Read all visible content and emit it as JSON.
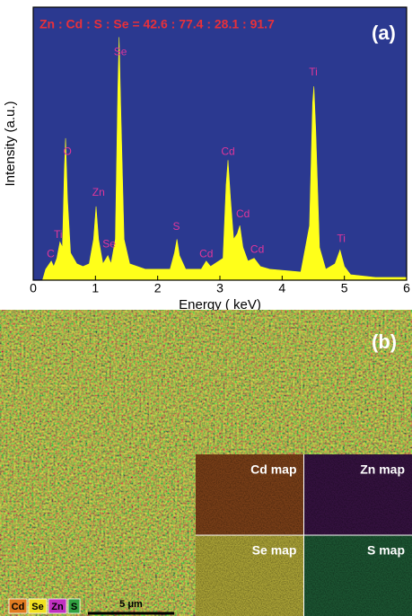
{
  "chart_data": {
    "type": "area",
    "title": "Zn : Cd : S : Se = 42.6 : 77.4 : 28.1 : 91.7",
    "panel_label": "(a)",
    "x_label": "Energy ( keV)",
    "y_label": "Intensity (a.u.)",
    "x": [
      0.15,
      0.2,
      0.26,
      0.29,
      0.33,
      0.38,
      0.43,
      0.47,
      0.5,
      0.52,
      0.55,
      0.6,
      0.7,
      0.8,
      0.9,
      0.97,
      1.01,
      1.05,
      1.12,
      1.2,
      1.25,
      1.32,
      1.36,
      1.38,
      1.41,
      1.46,
      1.55,
      1.8,
      2.2,
      2.27,
      2.31,
      2.35,
      2.45,
      2.7,
      2.78,
      2.85,
      3.05,
      3.1,
      3.13,
      3.17,
      3.22,
      3.28,
      3.32,
      3.37,
      3.45,
      3.55,
      3.65,
      3.8,
      4.3,
      4.44,
      4.49,
      4.51,
      4.54,
      4.6,
      4.7,
      4.85,
      4.93,
      5.0,
      5.1,
      5.5,
      6
    ],
    "values": [
      0,
      4,
      6,
      7,
      5,
      8,
      14,
      12,
      40,
      52,
      30,
      10,
      6,
      5,
      6,
      15,
      27,
      15,
      6,
      9,
      6,
      15,
      70,
      89,
      60,
      15,
      6,
      4,
      4,
      10,
      15,
      9,
      4,
      4,
      7,
      5,
      8,
      35,
      44,
      30,
      15,
      17,
      20,
      12,
      7,
      8,
      5,
      4,
      3,
      20,
      65,
      71,
      55,
      12,
      4,
      6,
      11,
      5,
      2,
      1,
      1
    ],
    "color": "#ffff1a",
    "background": "#2b3990",
    "xlim": [
      0,
      6
    ],
    "xticks": [
      0,
      1,
      2,
      3,
      4,
      5,
      6
    ],
    "ylim": [
      0,
      100
    ],
    "annotations": [
      {
        "text": "C",
        "x": 0.28,
        "y": 9.5
      },
      {
        "text": "Ti",
        "x": 0.4,
        "y": 16.5
      },
      {
        "text": "O",
        "x": 0.55,
        "y": 47
      },
      {
        "text": "Zn",
        "x": 1.05,
        "y": 32
      },
      {
        "text": "Se",
        "x": 1.22,
        "y": 13
      },
      {
        "text": "Se",
        "x": 1.4,
        "y": 83.5
      },
      {
        "text": "S",
        "x": 2.3,
        "y": 19.5
      },
      {
        "text": "Cd",
        "x": 2.78,
        "y": 9.5
      },
      {
        "text": "Cd",
        "x": 3.13,
        "y": 47
      },
      {
        "text": "Cd",
        "x": 3.37,
        "y": 24
      },
      {
        "text": "Cd",
        "x": 3.6,
        "y": 11
      },
      {
        "text": "Ti",
        "x": 4.5,
        "y": 76
      },
      {
        "text": "Ti",
        "x": 4.95,
        "y": 15
      }
    ]
  },
  "map_panel": {
    "label": "(b)",
    "scale_bar": "5 μm",
    "maps": [
      {
        "label": "Cd map",
        "color": "#7a3f18"
      },
      {
        "label": "Zn map",
        "color": "#351240"
      },
      {
        "label": "Se map",
        "color": "#aaa236"
      },
      {
        "label": "S map",
        "color": "#1c5532"
      }
    ],
    "legend": [
      {
        "label": "Cd",
        "color": "#e07a20"
      },
      {
        "label": "Se",
        "color": "#f0e020"
      },
      {
        "label": "Zn",
        "color": "#c030c0"
      },
      {
        "label": "S",
        "color": "#30a040"
      }
    ]
  }
}
